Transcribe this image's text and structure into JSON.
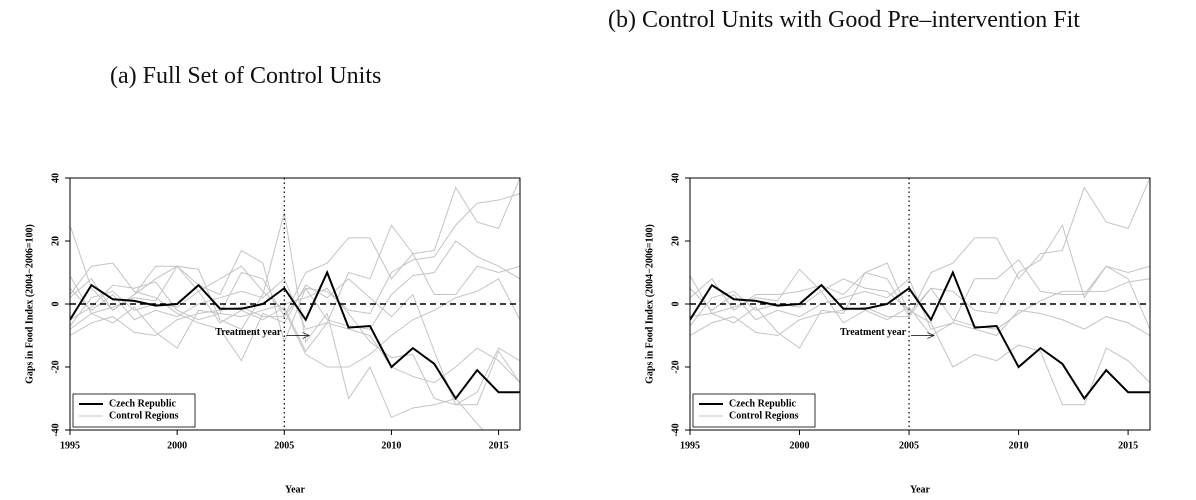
{
  "chart_data": [
    {
      "type": "line",
      "title": "(a) Full Set of Control Units",
      "x": [
        1995,
        1996,
        1997,
        1998,
        1999,
        2000,
        2001,
        2002,
        2003,
        2004,
        2005,
        2006,
        2007,
        2008,
        2009,
        2010,
        2011,
        2012,
        2013,
        2014,
        2015,
        2016
      ],
      "series": [
        {
          "name": "Czech Republic",
          "color": "#000000",
          "values": [
            -5,
            6,
            1.5,
            1,
            -0.5,
            0,
            6,
            -1.5,
            -1.5,
            0,
            5,
            -5,
            10,
            -7.5,
            -7,
            -20,
            -14,
            -19,
            -30,
            -21,
            -28,
            -28
          ]
        }
      ],
      "controls": {
        "name": "Control Regions",
        "color": "#c4c4c4",
        "lines": [
          [
            25,
            5,
            -2,
            3,
            8,
            12,
            11,
            -5,
            -8,
            3,
            29,
            -12,
            -3,
            -30,
            -20,
            -36,
            -33,
            -32,
            -30,
            -38,
            -45,
            -45
          ],
          [
            9,
            -3,
            -6,
            -1,
            -9,
            -14,
            -2,
            -3,
            10,
            8,
            -4,
            10,
            13,
            21,
            21,
            8,
            16,
            17,
            37,
            26,
            24,
            40
          ],
          [
            -10,
            -6,
            -4,
            -9,
            -10,
            -5,
            -3,
            -2,
            -1,
            -4,
            -4,
            5,
            4,
            -2,
            -3,
            10,
            14,
            15,
            25,
            32,
            33,
            35
          ],
          [
            -8,
            -3,
            -1,
            2,
            1,
            12,
            4,
            8,
            12,
            4,
            -2,
            -16,
            -20,
            -20,
            -16,
            -10,
            -5,
            -2,
            2,
            4,
            8,
            -5
          ],
          [
            3,
            12,
            13,
            4,
            2,
            -3,
            -6,
            -8,
            -18,
            -3,
            -6,
            6,
            2,
            8,
            2,
            -4,
            3,
            -15,
            -32,
            -32,
            -15,
            -25
          ],
          [
            5,
            -2,
            3,
            -5,
            -2,
            -4,
            0,
            2,
            4,
            2,
            8,
            -8,
            -6,
            10,
            8,
            25,
            16,
            3,
            3,
            12,
            10,
            12
          ],
          [
            -5,
            -1,
            6,
            5,
            7,
            -2,
            -5,
            -3,
            -4,
            -2,
            0,
            2,
            5,
            -3,
            -12,
            -17,
            -16,
            -30,
            -32,
            -28,
            -14,
            -18
          ],
          [
            2,
            8,
            -2,
            3,
            12,
            12,
            6,
            3,
            17,
            13,
            -12,
            5,
            -5,
            -7,
            -8,
            3,
            9,
            10,
            20,
            15,
            12,
            8
          ],
          [
            -7,
            2,
            4,
            -2,
            0,
            -1,
            4,
            -6,
            -2,
            -5,
            -1,
            -15,
            -6,
            -8,
            -10,
            -20,
            -23,
            -25,
            -20,
            -14,
            -18,
            -25
          ]
        ]
      },
      "xlabel": "Year",
      "ylabel": "Gaps in Food Index (2004−2006=100)",
      "xlim": [
        1995,
        2016
      ],
      "ylim": [
        -40,
        40
      ],
      "xticks": [
        1995,
        2000,
        2005,
        2010,
        2015
      ],
      "yticks": [
        -40,
        -20,
        0,
        20,
        40
      ],
      "hline": 0,
      "vline": 2005,
      "annotation": "Treatment year",
      "legend": "bottom-left"
    },
    {
      "type": "line",
      "title": "(b) Control Units with Good Pre–intervention Fit",
      "x": [
        1995,
        1996,
        1997,
        1998,
        1999,
        2000,
        2001,
        2002,
        2003,
        2004,
        2005,
        2006,
        2007,
        2008,
        2009,
        2010,
        2011,
        2012,
        2013,
        2014,
        2015,
        2016
      ],
      "series": [
        {
          "name": "Czech Republic",
          "color": "#000000",
          "values": [
            -5,
            6,
            1.5,
            1,
            -0.5,
            0,
            6,
            -1.5,
            -1.5,
            0,
            5,
            -5,
            10,
            -7.5,
            -7,
            -20,
            -14,
            -19,
            -30,
            -21,
            -28,
            -28
          ]
        }
      ],
      "controls": {
        "name": "Control Regions",
        "color": "#c4c4c4",
        "lines": [
          [
            9,
            -3,
            -6,
            -1,
            -9,
            -14,
            -2,
            -3,
            10,
            8,
            -4,
            10,
            13,
            21,
            21,
            8,
            16,
            17,
            37,
            26,
            24,
            40
          ],
          [
            -10,
            -6,
            -4,
            -9,
            -10,
            -5,
            -3,
            -2,
            -1,
            -4,
            -4,
            5,
            4,
            -2,
            -3,
            10,
            14,
            25,
            2,
            12,
            8,
            -8
          ],
          [
            -4,
            -3,
            -1,
            2,
            1,
            11,
            4,
            8,
            5,
            4,
            -2,
            -6,
            -20,
            -16,
            -18,
            -13,
            -15,
            -32,
            -32,
            -14,
            -18,
            -25
          ],
          [
            5,
            -2,
            3,
            -5,
            -2,
            -4,
            0,
            2,
            4,
            2,
            8,
            -8,
            -6,
            8,
            8,
            14,
            4,
            3,
            3,
            12,
            10,
            12
          ],
          [
            2,
            8,
            -2,
            3,
            3,
            4,
            6,
            3,
            10,
            13,
            -3,
            5,
            -5,
            -7,
            -8,
            -3,
            1,
            4,
            4,
            4,
            7,
            8
          ],
          [
            -7,
            2,
            4,
            -2,
            0,
            -1,
            4,
            -6,
            -2,
            -5,
            -1,
            -10,
            -6,
            -8,
            -10,
            -2,
            -3,
            -5,
            -8,
            -4,
            -6,
            -10
          ]
        ]
      },
      "xlabel": "Year",
      "ylabel": "Gaps in Food Index (2004−2006=100)",
      "xlim": [
        1995,
        2016
      ],
      "ylim": [
        -40,
        40
      ],
      "xticks": [
        1995,
        2000,
        2005,
        2010,
        2015
      ],
      "yticks": [
        -40,
        -20,
        0,
        20,
        40
      ],
      "hline": 0,
      "vline": 2005,
      "annotation": "Treatment year",
      "legend": "bottom-left"
    }
  ]
}
